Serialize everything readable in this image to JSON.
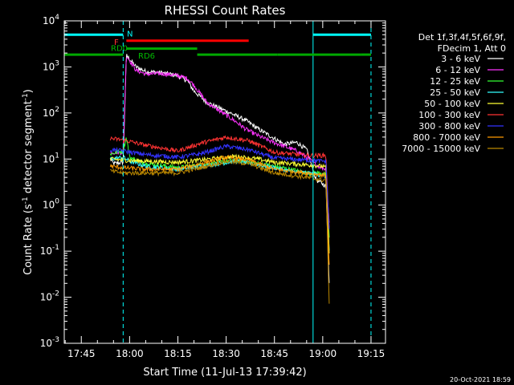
{
  "chart_data": {
    "type": "line",
    "title": "RHESSI Count Rates",
    "xlabel": "Start Time (11-Jul-13 17:39:42)",
    "ylabel_main": "Count Rate (s",
    "ylabel_sup1": "-1",
    "ylabel_mid": " detector segment",
    "ylabel_sup2": "-1",
    "ylabel_end": ")",
    "y_scale": "log",
    "ylim": [
      0.001,
      10000
    ],
    "xlim": [
      "17:39:42",
      "19:19:30"
    ],
    "x_ticks": [
      "17:45",
      "18:00",
      "18:15",
      "18:30",
      "18:45",
      "19:00",
      "19:15"
    ],
    "y_ticks": [
      {
        "base": "10",
        "exp": "4",
        "value": 10000
      },
      {
        "base": "10",
        "exp": "3",
        "value": 1000
      },
      {
        "base": "10",
        "exp": "2",
        "value": 100
      },
      {
        "base": "10",
        "exp": "1",
        "value": 10
      },
      {
        "base": "10",
        "exp": "0",
        "value": 1
      },
      {
        "base": "10",
        "exp": "-1",
        "value": 0.1
      },
      {
        "base": "10",
        "exp": "-2",
        "value": 0.01
      },
      {
        "base": "10",
        "exp": "-3",
        "value": 0.001
      }
    ],
    "legend_header": [
      "Det 1f,3f,4f,5f,6f,9f,",
      "FDecim 1, Att 0"
    ],
    "legend_placement": "right",
    "series": [
      {
        "name": "3 - 6 keV",
        "color": "#ffffff",
        "x": [
          "17:54",
          "17:55",
          "17:58",
          "17:59",
          "18:02",
          "18:05",
          "18:10",
          "18:15",
          "18:18",
          "18:20",
          "18:24",
          "18:30",
          "18:36",
          "18:40",
          "18:45",
          "18:48",
          "18:52",
          "18:55",
          "18:58",
          "19:00",
          "19:01",
          "19:02"
        ],
        "y": [
          10,
          8,
          8.5,
          1800,
          1000,
          800,
          750,
          650,
          500,
          300,
          170,
          110,
          70,
          45,
          28,
          21,
          23,
          16,
          3.5,
          2.9,
          2.6,
          0.02
        ]
      },
      {
        "name": "6 - 12 keV",
        "color": "#ff33ff",
        "x": [
          "17:54",
          "17:58",
          "17:59",
          "18:02",
          "18:05",
          "18:10",
          "18:15",
          "18:18",
          "18:20",
          "18:24",
          "18:30",
          "18:33",
          "18:36",
          "18:40",
          "18:44",
          "18:48",
          "18:52",
          "18:55",
          "18:58",
          "19:01",
          "19:02"
        ],
        "y": [
          14,
          14,
          1800,
          850,
          700,
          720,
          650,
          560,
          400,
          170,
          90,
          65,
          45,
          32,
          24,
          19,
          15,
          11,
          7.5,
          6,
          0.4
        ]
      },
      {
        "name": "12 - 25 keV",
        "color": "#33ff33",
        "x": [
          "17:54",
          "17:58",
          "17:59",
          "18:00",
          "18:05",
          "18:15",
          "18:25",
          "18:33",
          "18:40",
          "18:45",
          "18:50",
          "18:55",
          "19:00",
          "19:01",
          "19:02"
        ],
        "y": [
          13,
          15,
          30,
          11,
          8,
          6.5,
          8,
          9.5,
          8,
          7,
          6,
          5,
          5,
          4.5,
          0.2
        ]
      },
      {
        "name": "25 - 50 keV",
        "color": "#33ffff",
        "x": [
          "17:54",
          "17:58",
          "18:00",
          "18:05",
          "18:15",
          "18:25",
          "18:33",
          "18:40",
          "18:45",
          "18:50",
          "18:55",
          "19:00",
          "19:01",
          "19:02"
        ],
        "y": [
          10,
          11,
          9,
          7,
          6,
          7.5,
          9,
          7.5,
          6.5,
          5.5,
          5,
          4.5,
          4.2,
          0.1
        ]
      },
      {
        "name": "50 - 100 keV",
        "color": "#ffff33",
        "x": [
          "17:54",
          "17:58",
          "18:05",
          "18:15",
          "18:25",
          "18:33",
          "18:40",
          "18:45",
          "18:50",
          "18:55",
          "19:00",
          "19:01",
          "19:02"
        ],
        "y": [
          10,
          9.5,
          9,
          8.5,
          10,
          11.5,
          10,
          8.5,
          8,
          7.5,
          7,
          6.5,
          0.1
        ]
      },
      {
        "name": "100 - 300 keV",
        "color": "#ff3333",
        "x": [
          "17:54",
          "17:58",
          "18:05",
          "18:15",
          "18:22",
          "18:30",
          "18:37",
          "18:45",
          "18:50",
          "18:55",
          "19:00",
          "19:01",
          "19:02"
        ],
        "y": [
          28,
          26,
          20,
          15,
          22,
          30,
          25,
          14,
          13,
          12,
          12,
          12,
          0.3
        ]
      },
      {
        "name": "300 - 800 keV",
        "color": "#3333ff",
        "x": [
          "17:54",
          "17:58",
          "18:05",
          "18:15",
          "18:22",
          "18:30",
          "18:37",
          "18:45",
          "18:50",
          "18:55",
          "19:00",
          "19:01",
          "19:02"
        ],
        "y": [
          16,
          15,
          12.5,
          11,
          13,
          19,
          16,
          10.5,
          10,
          9.5,
          9,
          9,
          0.3
        ]
      },
      {
        "name": "800 - 7000 keV",
        "color": "#ff9900",
        "x": [
          "17:54",
          "17:58",
          "18:05",
          "18:15",
          "18:22",
          "18:30",
          "18:37",
          "18:45",
          "18:50",
          "18:55",
          "19:00",
          "19:01",
          "19:02"
        ],
        "y": [
          7,
          6.5,
          6,
          6,
          8,
          11,
          9.5,
          6,
          5.5,
          5,
          4.5,
          4.5,
          0.05
        ]
      },
      {
        "name": "7000 - 15000 keV",
        "color": "#bb8800",
        "x": [
          "17:54",
          "17:58",
          "18:05",
          "18:15",
          "18:22",
          "18:30",
          "18:37",
          "18:45",
          "18:50",
          "18:55",
          "19:00",
          "19:01",
          "19:02"
        ],
        "y": [
          5.5,
          5,
          5,
          5,
          6.5,
          9,
          8,
          5,
          4.5,
          4,
          3.5,
          3.5,
          0.008
        ]
      }
    ],
    "vlines": [
      {
        "x": "17:39:42",
        "style": "solid",
        "color": "#00ffff"
      },
      {
        "x": "17:58",
        "style": "dashed",
        "color": "#00ffff"
      },
      {
        "x": "18:57",
        "style": "solid",
        "color": "#00ffff"
      },
      {
        "x": "19:15",
        "style": "dashed",
        "color": "#00ffff"
      }
    ],
    "bars": [
      {
        "label": "N",
        "color": "#00ffff",
        "value": 5000,
        "ranges": [
          [
            "17:39:42",
            "17:58"
          ],
          [
            "18:57",
            "19:15"
          ]
        ]
      },
      {
        "label": "F",
        "color": "#ff0000",
        "value": 3700,
        "ranges": [
          [
            "17:59",
            "18:37"
          ]
        ]
      },
      {
        "label": "RD0",
        "color": "#00aa00",
        "value": 2500,
        "ranges": [
          [
            "17:59",
            "18:21"
          ]
        ]
      },
      {
        "label": "RD6",
        "color": "#00aa00",
        "value": 1850,
        "ranges": [
          [
            "17:39:42",
            "17:58"
          ],
          [
            "18:21",
            "18:46"
          ],
          [
            "18:46",
            "19:12"
          ],
          [
            "19:12",
            "19:15"
          ]
        ]
      }
    ],
    "grid": false
  },
  "footer": {
    "date": "20-Oct-2021 18:59"
  }
}
